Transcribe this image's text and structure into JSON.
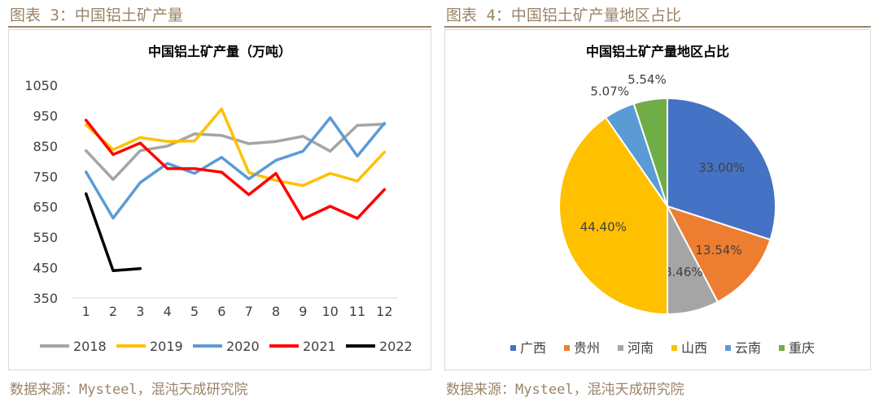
{
  "left_figure": {
    "caption": "图表 3：中国铝土矿产量",
    "source": "数据来源：Mysteel，混沌天成研究院"
  },
  "right_figure": {
    "caption": "图表 4：中国铝土矿产量地区占比",
    "source": "数据来源：Mysteel，混沌天成研究院"
  },
  "chart_data": [
    {
      "type": "line",
      "title": "中国铝土矿产量（万吨）",
      "x": [
        "1",
        "2",
        "3",
        "4",
        "5",
        "6",
        "7",
        "8",
        "9",
        "10",
        "11",
        "12"
      ],
      "ylim": [
        350,
        1050
      ],
      "yticks": [
        350,
        450,
        550,
        650,
        750,
        850,
        950,
        1050
      ],
      "grid": false,
      "legend": "bottom",
      "series": [
        {
          "name": "2018",
          "color": "#a5a5a5",
          "values": [
            835,
            740,
            835,
            850,
            890,
            885,
            858,
            865,
            882,
            833,
            918,
            922
          ]
        },
        {
          "name": "2019",
          "color": "#ffc000",
          "values": [
            920,
            838,
            878,
            865,
            867,
            972,
            763,
            737,
            720,
            760,
            735,
            830
          ]
        },
        {
          "name": "2020",
          "color": "#5b9bd5",
          "values": [
            765,
            613,
            730,
            793,
            760,
            813,
            742,
            803,
            833,
            943,
            817,
            925
          ]
        },
        {
          "name": "2021",
          "color": "#ff0000",
          "values": [
            935,
            822,
            860,
            776,
            776,
            764,
            690,
            760,
            610,
            652,
            612,
            707
          ]
        },
        {
          "name": "2022",
          "color": "#000000",
          "values": [
            693,
            440,
            447,
            null,
            null,
            null,
            null,
            null,
            null,
            null,
            null,
            null
          ]
        }
      ]
    },
    {
      "type": "pie",
      "title": "中国铝土矿产量地区占比",
      "legend": "bottom",
      "slices": [
        {
          "name": "广西",
          "value": 33.0,
          "label": "33.00%",
          "color": "#4472c4"
        },
        {
          "name": "贵州",
          "value": 13.54,
          "label": "13.54%",
          "color": "#ed7d31"
        },
        {
          "name": "河南",
          "value": 8.46,
          "label": "8.46%",
          "color": "#a5a5a5"
        },
        {
          "name": "山西",
          "value": 44.4,
          "label": "44.40%",
          "color": "#ffc000"
        },
        {
          "name": "云南",
          "value": 5.07,
          "label": "5.07%",
          "color": "#5b9bd5"
        },
        {
          "name": "重庆",
          "value": 5.54,
          "label": "5.54%",
          "color": "#70ad47"
        }
      ]
    }
  ]
}
